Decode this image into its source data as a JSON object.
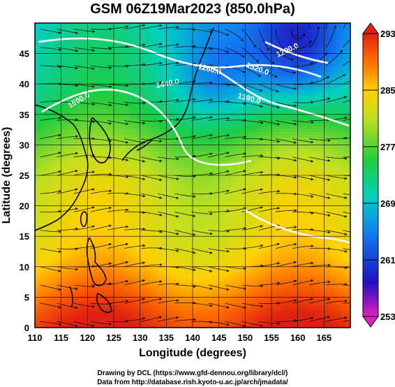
{
  "title": "GSM 06Z19Mar2023 (850.0hPa)",
  "x_axis": {
    "label": "Longitude (degrees)",
    "ticks": [
      "110",
      "115",
      "120",
      "125",
      "130",
      "135",
      "140",
      "145",
      "150",
      "155",
      "160",
      "165"
    ]
  },
  "y_axis": {
    "label": "Latitude  (degrees)",
    "ticks": [
      "0",
      "5",
      "10",
      "15",
      "20",
      "25",
      "30",
      "35",
      "40",
      "45"
    ]
  },
  "colorbar": {
    "ticks": [
      "253",
      "261",
      "269",
      "277",
      "285",
      "293"
    ],
    "min": 253,
    "max": 293
  },
  "contour_labels": [
    "1320.0",
    "1260.0",
    "1440.0",
    "1380.0",
    "1200.0",
    "1500.0",
    "1440.0"
  ],
  "credits": {
    "line1": "Drawing by DCL (https://www.gfd-dennou.org/library/dcl/)",
    "line2": "Data from http://database.rish.kyoto-u.ac.jp/arch/jmadata/"
  },
  "chart_data": {
    "type": "heatmap",
    "title": "GSM 06Z19Mar2023 (850.0hPa)",
    "xlabel": "Longitude (degrees)",
    "ylabel": "Latitude  (degrees)",
    "xlim": [
      110,
      170
    ],
    "ylim": [
      0,
      50
    ],
    "colorbar_range": [
      253,
      293
    ],
    "colormap": [
      "#cc33cc",
      "#0000cc",
      "#00bbee",
      "#22cc44",
      "#eeee00",
      "#ff4411"
    ],
    "overlays": [
      "streamlines",
      "geopotential height contours",
      "coastlines"
    ]
  }
}
